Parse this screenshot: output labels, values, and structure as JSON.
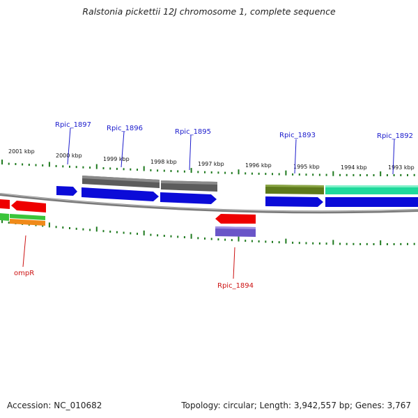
{
  "title": "Ralstonia pickettii 12J chromosome 1, complete sequence",
  "footer": {
    "accession": "Accession: NC_010682",
    "summary": "Topology: circular; Length: 3,942,557 bp; Genes: 3,767"
  },
  "colors": {
    "plus_label": "#1a1acc",
    "minus_label": "#cc1111",
    "tick": "#1f7a1f",
    "backbone": "#808080"
  },
  "kbp_ticks": [
    "2001 kbp",
    "2000 kbp",
    "1999 kbp",
    "1998 kbp",
    "1997 kbp",
    "1996 kbp",
    "1995 kbp",
    "1994 kbp",
    "1993 kbp"
  ],
  "gene_labels": {
    "plus": [
      "Rpic_1897",
      "Rpic_1896",
      "Rpic_1895",
      "Rpic_1893",
      "Rpic_1892"
    ],
    "minus": [
      "ompR",
      "Rpic_1894"
    ]
  }
}
